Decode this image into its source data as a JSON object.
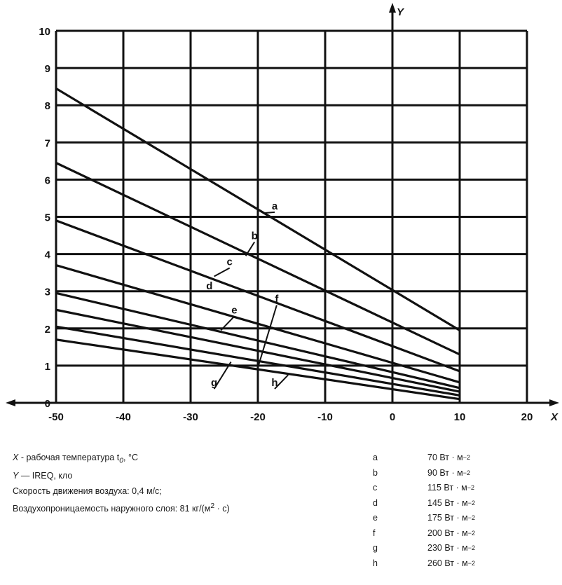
{
  "chart_data": {
    "type": "line",
    "xlabel": "X",
    "ylabel": "Y",
    "xlim": [
      -50,
      20
    ],
    "ylim": [
      0,
      10
    ],
    "x_ticks": [
      "-50",
      "-40",
      "-30",
      "-20",
      "-10",
      "0",
      "10",
      "20"
    ],
    "y_ticks": [
      "0",
      "1",
      "2",
      "3",
      "4",
      "5",
      "6",
      "7",
      "8",
      "9",
      "10"
    ],
    "grid": true,
    "series": [
      {
        "name": "a",
        "x": [
          -50,
          10
        ],
        "y": [
          8.45,
          1.95
        ],
        "label_at": [
          -17.5,
          5.2
        ],
        "leader_to": [
          -19.2,
          5.1
        ]
      },
      {
        "name": "b",
        "x": [
          -50,
          10
        ],
        "y": [
          6.45,
          1.3
        ],
        "label_at": [
          -20.5,
          4.4
        ],
        "leader_to": [
          -21.8,
          3.95
        ]
      },
      {
        "name": "c",
        "x": [
          -50,
          10
        ],
        "y": [
          4.9,
          0.85
        ],
        "label_at": [
          -24.2,
          3.7
        ],
        "leader_to": [
          -26.5,
          3.4
        ]
      },
      {
        "name": "d",
        "x": [
          -50,
          10
        ],
        "y": [
          3.7,
          0.55
        ],
        "label_at": [
          -27.2,
          3.05
        ],
        "leader_to": [
          -27.2,
          3.05
        ]
      },
      {
        "name": "e",
        "x": [
          -50,
          10
        ],
        "y": [
          2.95,
          0.4
        ],
        "label_at": [
          -23.5,
          2.4
        ],
        "leader_to": [
          -25.5,
          1.95
        ]
      },
      {
        "name": "f",
        "x": [
          -50,
          10
        ],
        "y": [
          2.5,
          0.3
        ],
        "label_at": [
          -17.2,
          2.7
        ],
        "leader_to": [
          -20.0,
          0.95
        ]
      },
      {
        "name": "g",
        "x": [
          -50,
          10
        ],
        "y": [
          2.05,
          0.2
        ],
        "label_at": [
          -26.5,
          0.45
        ],
        "leader_to": [
          -24.0,
          1.1
        ]
      },
      {
        "name": "h",
        "x": [
          -50,
          10
        ],
        "y": [
          1.7,
          0.1
        ],
        "label_at": [
          -17.5,
          0.45
        ],
        "leader_to": [
          -15.5,
          0.75
        ]
      }
    ]
  },
  "legend_left": [
    {
      "key": "X",
      "text_before_sub": " - рабочая температура t",
      "sub": "0",
      "text_after_sub": ", °C"
    },
    {
      "key": "Y",
      "text": " — IREQ, кло"
    },
    {
      "text": "Скорость движения воздуха: 0,4 м/с;"
    },
    {
      "text": "Воздухопроницаемость наружного слоя: 81 кг/(м",
      "sup": "2",
      "after": " · с)"
    }
  ],
  "legend_right": [
    {
      "key": "a",
      "value": "70 Вт · м",
      "sup": "−2"
    },
    {
      "key": "b",
      "value": "90 Вт · м",
      "sup": "−2"
    },
    {
      "key": "c",
      "value": "115 Вт · м",
      "sup": "−2"
    },
    {
      "key": "d",
      "value": "145 Вт · м",
      "sup": "−2"
    },
    {
      "key": "e",
      "value": "175 Вт · м",
      "sup": "−2"
    },
    {
      "key": "f",
      "value": "200 Вт · м",
      "sup": "−2"
    },
    {
      "key": "g",
      "value": "230 Вт · м",
      "sup": "−2"
    },
    {
      "key": "h",
      "value": "260 Вт · м",
      "sup": "−2"
    }
  ]
}
